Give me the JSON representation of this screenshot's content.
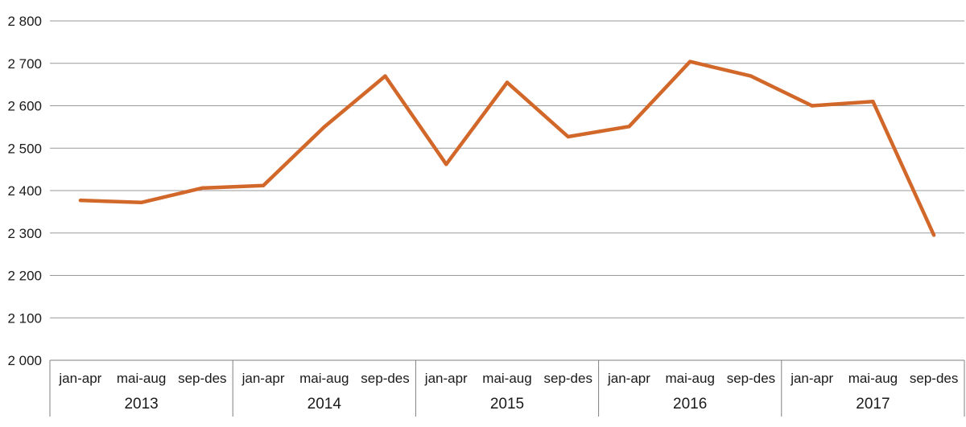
{
  "chart_data": {
    "type": "line",
    "ylim": [
      2000,
      2800
    ],
    "yticks": [
      2000,
      2100,
      2200,
      2300,
      2400,
      2500,
      2600,
      2700,
      2800
    ],
    "ytick_labels": [
      "2 000",
      "2 100",
      "2 200",
      "2 300",
      "2 400",
      "2 500",
      "2 600",
      "2 700",
      "2 800"
    ],
    "grid": true,
    "line_color": "#d2672a",
    "periods": [
      "jan-apr",
      "mai-aug",
      "sep-des"
    ],
    "years": [
      "2013",
      "2014",
      "2015",
      "2016",
      "2017"
    ],
    "categories": [
      "jan-apr 2013",
      "mai-aug 2013",
      "sep-des 2013",
      "jan-apr 2014",
      "mai-aug 2014",
      "sep-des 2014",
      "jan-apr 2015",
      "mai-aug 2015",
      "sep-des 2015",
      "jan-apr 2016",
      "mai-aug 2016",
      "sep-des 2016",
      "jan-apr 2017",
      "mai-aug 2017",
      "sep-des 2017"
    ],
    "series": [
      {
        "values": [
          2377,
          2372,
          2406,
          2412,
          2550,
          2670,
          2462,
          2655,
          2527,
          2551,
          2704,
          2670,
          2600,
          2610,
          2295
        ]
      }
    ]
  }
}
